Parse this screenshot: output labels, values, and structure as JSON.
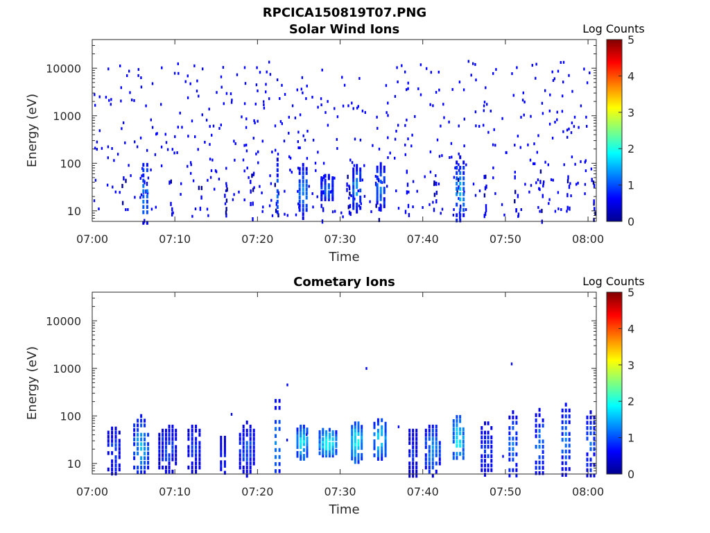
{
  "figure": {
    "title": "RPCICA150819T07.PNG"
  },
  "colorscale": [
    "#00008f",
    "#0000ff",
    "#0080ff",
    "#00ffff",
    "#80ff80",
    "#ffff00",
    "#ff8000",
    "#ff0000",
    "#800000"
  ],
  "chart_data": [
    {
      "type": "heatmap",
      "title": "Solar Wind Ions",
      "xlabel": "Time",
      "ylabel": "Energy (eV)",
      "y_scale": "log",
      "xlim": [
        "07:00",
        "08:01"
      ],
      "ylim": [
        6,
        40000
      ],
      "xticks": [
        "07:00",
        "07:10",
        "07:20",
        "07:30",
        "07:40",
        "07:50",
        "08:00"
      ],
      "yticks": [
        "10",
        "100",
        "1000",
        "10000"
      ],
      "colorbar": {
        "label": "Log Counts",
        "range": [
          0,
          5
        ],
        "ticks": [
          "0",
          "1",
          "2",
          "3",
          "4",
          "5"
        ]
      },
      "clusters": [
        {
          "t": 6.3,
          "e": 25,
          "w": 1.0,
          "h": 0.45,
          "v": 1.4
        },
        {
          "t": 22.3,
          "e": 25,
          "w": 0.8,
          "h": 0.45,
          "v": 1.2
        },
        {
          "t": 25.4,
          "e": 28,
          "w": 1.2,
          "h": 0.35,
          "v": 1.4
        },
        {
          "t": 28.3,
          "e": 32,
          "w": 1.6,
          "h": 0.2,
          "v": 1.2
        },
        {
          "t": 31.9,
          "e": 32,
          "w": 1.2,
          "h": 0.3,
          "v": 1.5
        },
        {
          "t": 34.8,
          "e": 35,
          "w": 1.2,
          "h": 0.3,
          "v": 1.4
        },
        {
          "t": 44.4,
          "e": 28,
          "w": 1.2,
          "h": 0.45,
          "v": 1.6
        }
      ],
      "streaks": [
        {
          "t": 3.5
        },
        {
          "t": 6.1
        },
        {
          "t": 9.2
        },
        {
          "t": 12.8
        },
        {
          "t": 15.8
        },
        {
          "t": 18.9
        },
        {
          "t": 22.0
        },
        {
          "t": 27.5
        },
        {
          "t": 30.7
        },
        {
          "t": 34.2
        },
        {
          "t": 37.8
        },
        {
          "t": 41.2
        },
        {
          "t": 44.0
        },
        {
          "t": 47.1
        },
        {
          "t": 51.0
        },
        {
          "t": 54.0
        },
        {
          "t": 57.4
        },
        {
          "t": 60.3
        }
      ],
      "scatter_density": 520
    },
    {
      "type": "heatmap",
      "title": "Cometary Ions",
      "xlabel": "Time",
      "ylabel": "Energy (eV)",
      "y_scale": "log",
      "xlim": [
        "07:00",
        "08:01"
      ],
      "ylim": [
        6,
        40000
      ],
      "xticks": [
        "07:00",
        "07:10",
        "07:20",
        "07:30",
        "07:40",
        "07:50",
        "08:00"
      ],
      "yticks": [
        "10",
        "100",
        "1000",
        "10000"
      ],
      "colorbar": {
        "label": "Log Counts",
        "range": [
          0,
          5
        ],
        "ticks": [
          "0",
          "1",
          "2",
          "3",
          "4",
          "5"
        ]
      },
      "clusters": [
        {
          "t": 2.5,
          "e": 20,
          "w": 1.6,
          "h": 0.35,
          "v": 1.0
        },
        {
          "t": 5.8,
          "e": 25,
          "w": 1.8,
          "h": 0.4,
          "v": 1.6
        },
        {
          "t": 9.0,
          "e": 22,
          "w": 2.0,
          "h": 0.35,
          "v": 1.0
        },
        {
          "t": 12.2,
          "e": 22,
          "w": 1.6,
          "h": 0.35,
          "v": 0.9
        },
        {
          "t": 15.7,
          "e": 15,
          "w": 1.0,
          "h": 0.3,
          "v": 0.8
        },
        {
          "t": 18.6,
          "e": 22,
          "w": 1.8,
          "h": 0.35,
          "v": 1.1
        },
        {
          "t": 22.3,
          "e": 35,
          "w": 1.0,
          "h": 0.6,
          "v": 1.5
        },
        {
          "t": 25.3,
          "e": 30,
          "w": 1.4,
          "h": 0.25,
          "v": 2.0
        },
        {
          "t": 28.4,
          "e": 30,
          "w": 2.0,
          "h": 0.2,
          "v": 2.2
        },
        {
          "t": 31.9,
          "e": 30,
          "w": 1.4,
          "h": 0.3,
          "v": 2.1
        },
        {
          "t": 34.7,
          "e": 35,
          "w": 1.6,
          "h": 0.3,
          "v": 1.9
        },
        {
          "t": 38.7,
          "e": 18,
          "w": 1.2,
          "h": 0.35,
          "v": 0.8
        },
        {
          "t": 41.1,
          "e": 22,
          "w": 1.8,
          "h": 0.35,
          "v": 1.4
        },
        {
          "t": 44.2,
          "e": 35,
          "w": 1.4,
          "h": 0.35,
          "v": 2.0
        },
        {
          "t": 47.6,
          "e": 22,
          "w": 1.4,
          "h": 0.4,
          "v": 1.0
        },
        {
          "t": 50.8,
          "e": 25,
          "w": 1.2,
          "h": 0.45,
          "v": 1.3
        },
        {
          "t": 54.0,
          "e": 28,
          "w": 1.2,
          "h": 0.45,
          "v": 1.3
        },
        {
          "t": 57.2,
          "e": 30,
          "w": 1.2,
          "h": 0.5,
          "v": 1.3
        },
        {
          "t": 60.2,
          "e": 25,
          "w": 1.2,
          "h": 0.45,
          "v": 1.2
        }
      ],
      "streaks": [],
      "scatter_density": 8
    }
  ]
}
